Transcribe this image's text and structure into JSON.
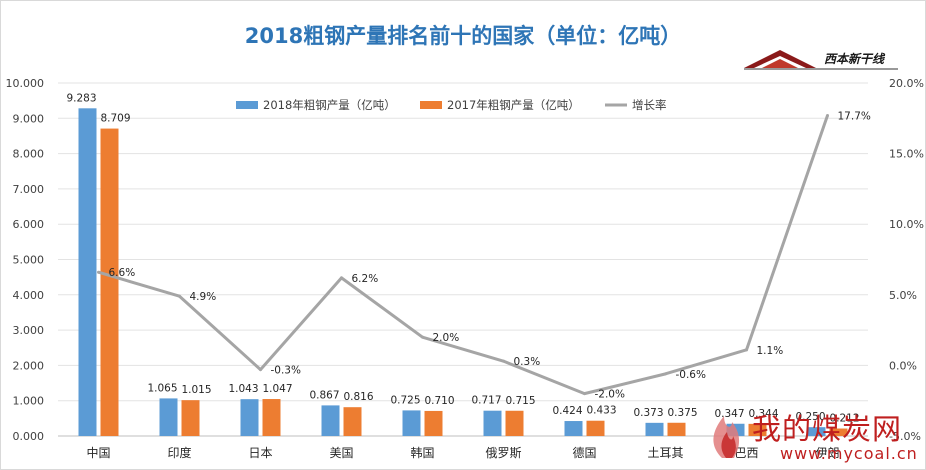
{
  "chart_data": {
    "type": "bar",
    "title": "2018粗钢产量排名前十的国家（单位：亿吨）",
    "categories": [
      "中国",
      "印度",
      "日本",
      "美国",
      "韩国",
      "俄罗斯",
      "德国",
      "土耳其",
      "巴西",
      "伊朗"
    ],
    "series": [
      {
        "name": "2018年粗钢产量（亿吨）",
        "type": "bar",
        "axis": "left",
        "color": "#5b9bd5",
        "values": [
          9.283,
          1.065,
          1.043,
          0.867,
          0.725,
          0.717,
          0.424,
          0.373,
          0.347,
          0.25
        ],
        "labels": [
          "9.283",
          "1.065",
          "1.043",
          "0.867",
          "0.725",
          "0.717",
          "0.424",
          "0.373",
          "0.347",
          "0.250"
        ]
      },
      {
        "name": "2017年粗钢产量（亿吨）",
        "type": "bar",
        "axis": "left",
        "color": "#ed7d31",
        "values": [
          8.709,
          1.015,
          1.047,
          0.816,
          0.71,
          0.715,
          0.433,
          0.375,
          0.344,
          0.212
        ],
        "labels": [
          "8.709",
          "1.015",
          "1.047",
          "0.816",
          "0.710",
          "0.715",
          "0.433",
          "0.375",
          "0.344",
          "0.212"
        ]
      },
      {
        "name": "增长率",
        "type": "line",
        "axis": "right",
        "color": "#a5a5a5",
        "values": [
          6.6,
          4.9,
          -0.3,
          6.2,
          2.0,
          0.3,
          -2.0,
          -0.6,
          1.1,
          17.7
        ],
        "labels": [
          "6.6%",
          "4.9%",
          "-0.3%",
          "6.2%",
          "2.0%",
          "0.3%",
          "-2.0%",
          "-0.6%",
          "1.1%",
          "17.7%"
        ]
      }
    ],
    "left_axis": {
      "min": 0,
      "max": 10,
      "step": 1,
      "tick_labels": [
        "0.000",
        "1.000",
        "2.000",
        "3.000",
        "4.000",
        "5.000",
        "6.000",
        "7.000",
        "8.000",
        "9.000",
        "10.000"
      ]
    },
    "right_axis": {
      "min": -5,
      "max": 20,
      "step": 5,
      "tick_labels": [
        "-5.0%",
        "0.0%",
        "5.0%",
        "10.0%",
        "15.0%",
        "20.0%"
      ]
    },
    "grid": true,
    "legend_position": "top"
  },
  "branding": {
    "logo_text": "西本新干线",
    "watermark_text": "我的煤炭网",
    "watermark_url": "www.mycoal.cn"
  }
}
